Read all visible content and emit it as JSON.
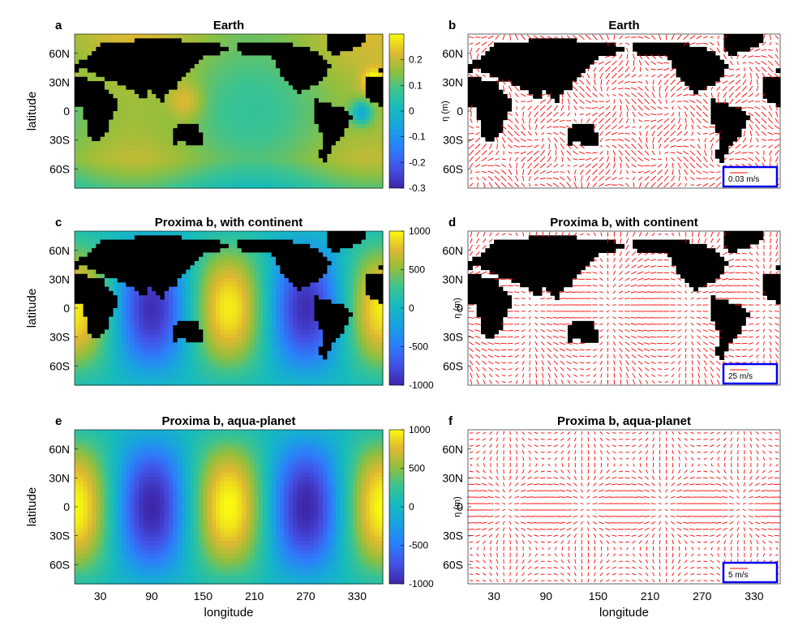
{
  "figure": {
    "panels": [
      {
        "letter": "a",
        "title": "Earth",
        "kind": "field",
        "field": "earth",
        "ylabel": "latitude",
        "cbar": {
          "ticks": [
            "0.2",
            "0.1",
            "0",
            "-0.1",
            "-0.2",
            "-0.3"
          ],
          "tick_values": [
            0.2,
            0.1,
            0,
            -0.1,
            -0.2,
            -0.3
          ],
          "range": [
            -0.3,
            0.3
          ],
          "label": "η (m)"
        }
      },
      {
        "letter": "b",
        "title": "Earth",
        "kind": "vector",
        "pattern": "earth",
        "ylabel": "",
        "scale": "0.03 m/s"
      },
      {
        "letter": "c",
        "title": "Proxima b, with continent",
        "kind": "field",
        "field": "proxima",
        "ylabel": "latitude",
        "cbar": {
          "ticks": [
            "1000",
            "500",
            "0",
            "-500",
            "-1000"
          ],
          "tick_values": [
            1000,
            500,
            0,
            -500,
            -1000
          ],
          "range": [
            -1000,
            1000
          ],
          "label": ""
        }
      },
      {
        "letter": "d",
        "title": "Proxima b, with continent",
        "kind": "vector",
        "pattern": "proxima",
        "ylabel": "η (m)",
        "scale": "25 m/s"
      },
      {
        "letter": "e",
        "title": "Proxima b, aqua-planet",
        "kind": "field",
        "field": "aqua",
        "ylabel": "latitude",
        "cbar": {
          "ticks": [
            "1000",
            "500",
            "0",
            "-500",
            "-1000"
          ],
          "tick_values": [
            1000,
            500,
            0,
            -500,
            -1000
          ],
          "range": [
            -1000,
            1000
          ],
          "label": ""
        }
      },
      {
        "letter": "f",
        "title": "Proxima b, aqua-planet",
        "kind": "vector",
        "pattern": "aqua",
        "ylabel": "η (m)",
        "scale": "5 m/s"
      }
    ],
    "x_ticks": [
      "30",
      "90",
      "150",
      "210",
      "270",
      "330"
    ],
    "x_tick_values": [
      30,
      90,
      150,
      210,
      270,
      330
    ],
    "y_ticks": [
      "60N",
      "30N",
      "0",
      "30S",
      "60S"
    ],
    "y_tick_values": [
      60,
      30,
      0,
      -30,
      -60
    ],
    "xlabel": "longitude",
    "colors": {
      "land": "#000000",
      "arrows": "#ff0000",
      "scalebox": "#0000ee",
      "colormap": "parula"
    }
  },
  "chart_data": [
    {
      "panel": "a",
      "type": "heatmap",
      "title": "Earth",
      "ylabel": "latitude",
      "xlim": [
        0,
        360
      ],
      "ylim": [
        -80,
        80
      ],
      "colorbar_range": [
        -0.3,
        0.3
      ],
      "colorbar_label": "η (m)",
      "features": "Sea surface height anomaly with continents masked in black"
    },
    {
      "panel": "b",
      "type": "quiver",
      "title": "Earth",
      "xlim": [
        0,
        360
      ],
      "ylim": [
        -80,
        80
      ],
      "reference_vector": "0.03 m/s"
    },
    {
      "panel": "c",
      "type": "heatmap",
      "title": "Proxima b, with continent",
      "ylabel": "latitude",
      "xlim": [
        0,
        360
      ],
      "ylim": [
        -80,
        80
      ],
      "colorbar_range": [
        -1000,
        1000
      ],
      "maxima_longitudes": [
        0,
        180,
        360
      ]
    },
    {
      "panel": "d",
      "type": "quiver",
      "title": "Proxima b, with continent",
      "ylabel": "η (m)",
      "xlim": [
        0,
        360
      ],
      "ylim": [
        -80,
        80
      ],
      "reference_vector": "25 m/s"
    },
    {
      "panel": "e",
      "type": "heatmap",
      "title": "Proxima b, aqua-planet",
      "ylabel": "latitude",
      "xlim": [
        0,
        360
      ],
      "ylim": [
        -80,
        80
      ],
      "colorbar_range": [
        -1000,
        1000
      ],
      "maxima_longitudes": [
        0,
        180,
        360
      ]
    },
    {
      "panel": "f",
      "type": "quiver",
      "title": "Proxima b, aqua-planet",
      "ylabel": "η (m)",
      "xlim": [
        0,
        360
      ],
      "ylim": [
        -80,
        80
      ],
      "reference_vector": "5 m/s"
    }
  ]
}
